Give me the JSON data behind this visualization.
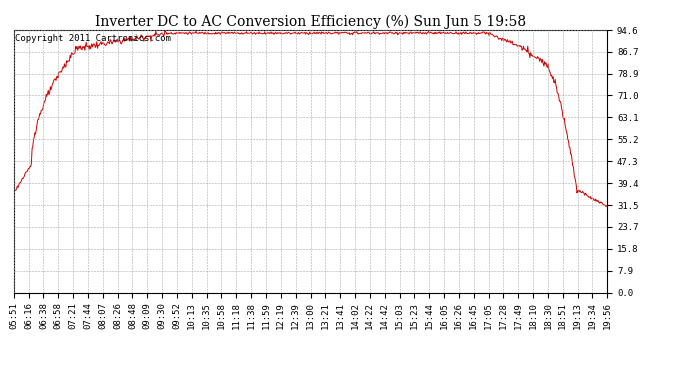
{
  "title": "Inverter DC to AC Conversion Efficiency (%) Sun Jun 5 19:58",
  "copyright": "Copyright 2011 Cartronics.com",
  "y_ticks": [
    0.0,
    7.9,
    15.8,
    23.7,
    31.5,
    39.4,
    47.3,
    55.2,
    63.1,
    71.0,
    78.9,
    86.7,
    94.6
  ],
  "x_tick_labels": [
    "05:51",
    "06:16",
    "06:38",
    "06:58",
    "07:21",
    "07:44",
    "08:07",
    "08:26",
    "08:48",
    "09:09",
    "09:30",
    "09:52",
    "10:13",
    "10:35",
    "10:58",
    "11:18",
    "11:38",
    "11:59",
    "12:19",
    "12:39",
    "13:00",
    "13:21",
    "13:41",
    "14:02",
    "14:22",
    "14:42",
    "15:03",
    "15:23",
    "15:44",
    "16:05",
    "16:26",
    "16:45",
    "17:05",
    "17:28",
    "17:49",
    "18:10",
    "18:30",
    "18:51",
    "19:13",
    "19:34",
    "19:56"
  ],
  "line_color": "#cc0000",
  "background_color": "#ffffff",
  "plot_bg_color": "#ffffff",
  "grid_color": "#aaaaaa",
  "title_fontsize": 10,
  "copyright_fontsize": 6.5,
  "tick_fontsize": 6.5,
  "y_min": 0.0,
  "y_max": 94.6,
  "fig_width": 6.9,
  "fig_height": 3.75,
  "dpi": 100
}
